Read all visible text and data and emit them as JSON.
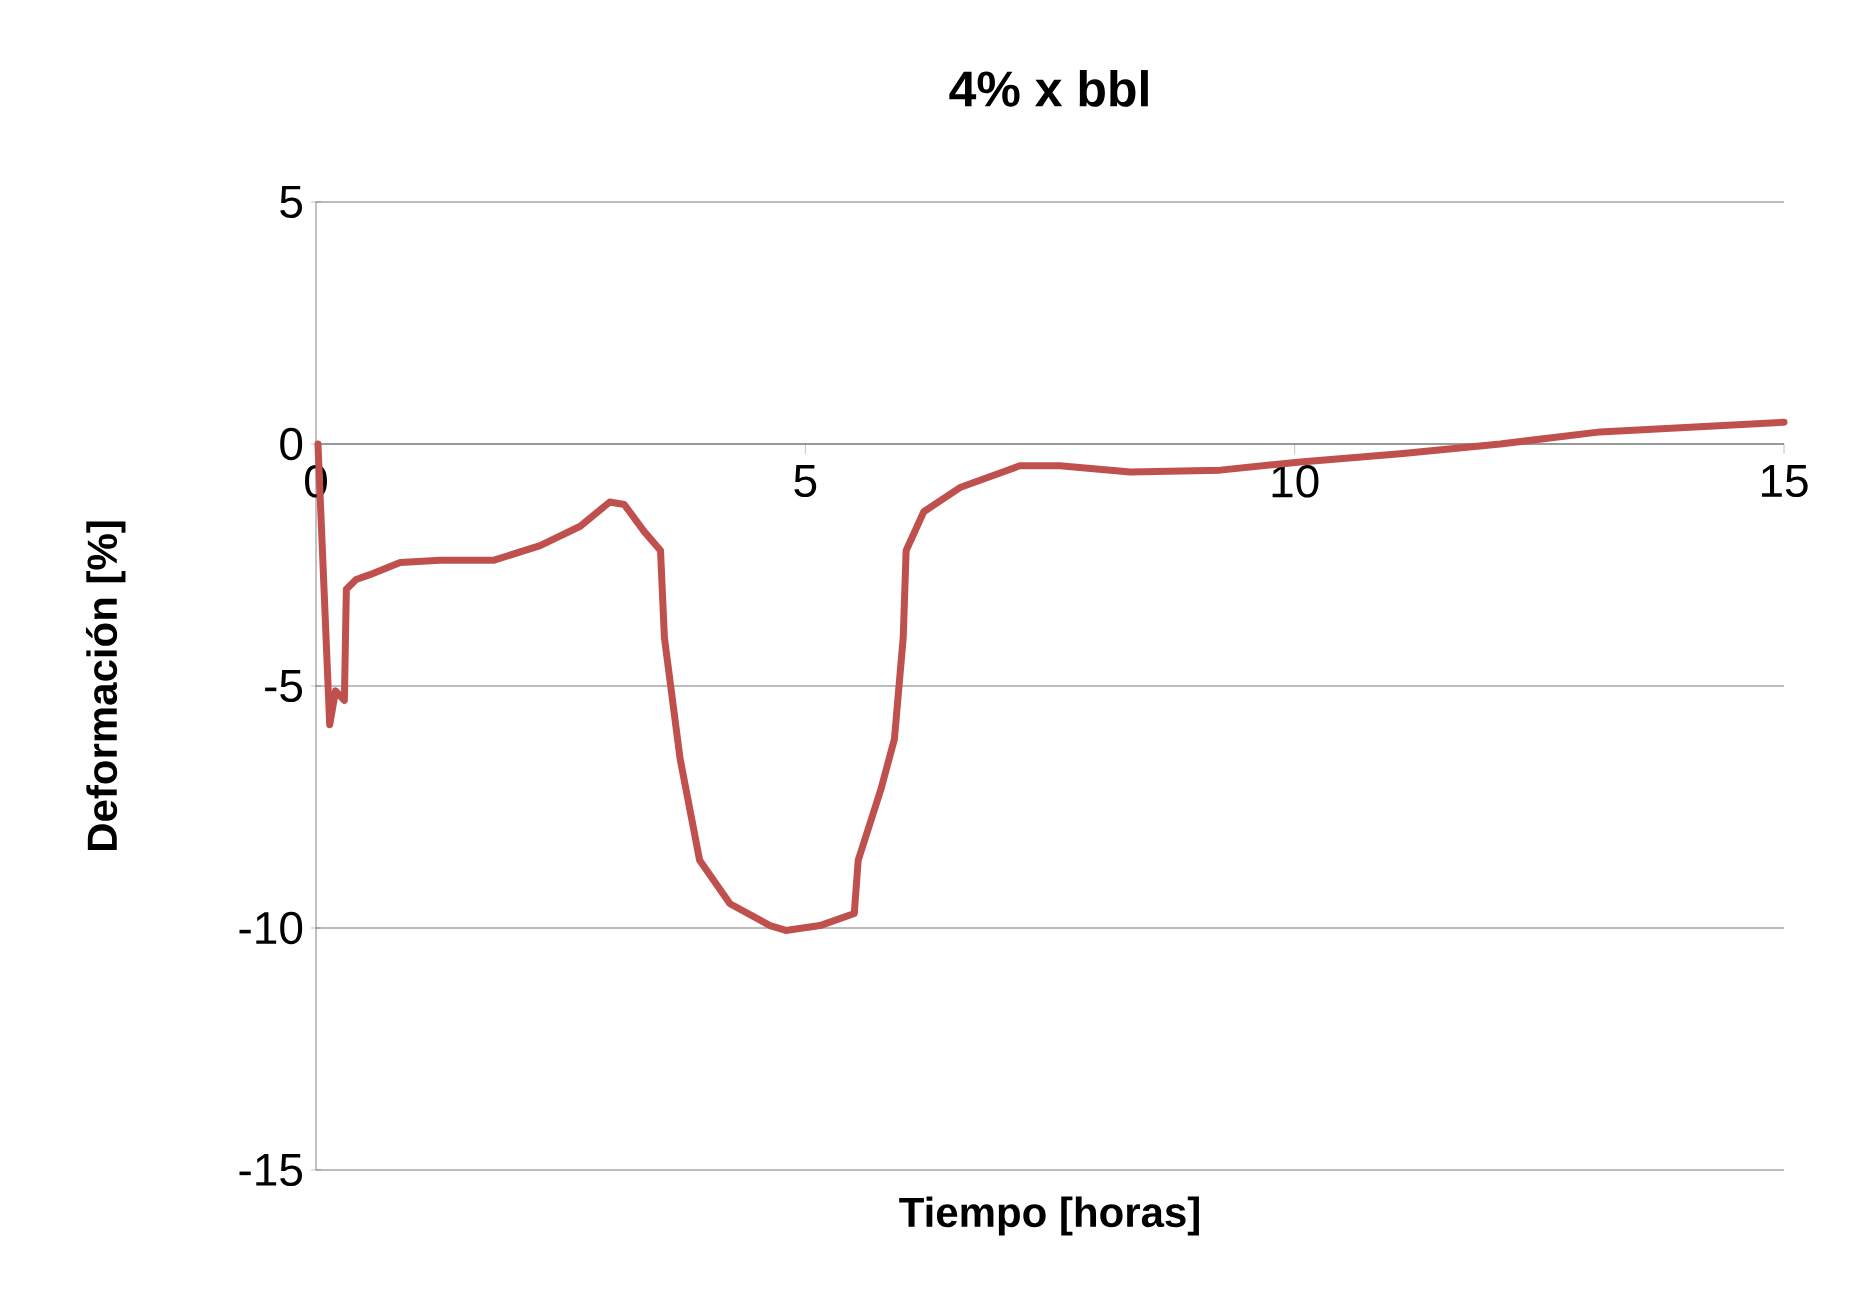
{
  "chart_data": {
    "type": "line",
    "title": "4% x bbl",
    "xlabel": "Tiempo [horas]",
    "ylabel": "Deformación [%]",
    "x": [
      0.02,
      0.14,
      0.2,
      0.29,
      0.31,
      0.41,
      0.55,
      0.86,
      1.27,
      1.82,
      2.29,
      2.7,
      3.0,
      3.15,
      3.35,
      3.52,
      3.56,
      3.72,
      3.92,
      4.23,
      4.64,
      4.8,
      5.15,
      5.5,
      5.54,
      5.77,
      5.91,
      6.0,
      6.03,
      6.21,
      6.58,
      6.99,
      7.19,
      7.6,
      8.32,
      9.24,
      10.06,
      11.08,
      12.1,
      13.12,
      15.0
    ],
    "series": [
      {
        "color": "#c0504d",
        "values": [
          0,
          -5.8,
          -5.1,
          -5.3,
          -3.0,
          -2.8,
          -2.7,
          -2.45,
          -2.4,
          -2.4,
          -2.1,
          -1.7,
          -1.2,
          -1.25,
          -1.8,
          -2.2,
          -4.0,
          -6.5,
          -8.6,
          -9.5,
          -9.95,
          -10.05,
          -9.95,
          -9.7,
          -8.6,
          -7.15,
          -6.1,
          -4.0,
          -2.2,
          -1.4,
          -0.9,
          -0.6,
          -0.45,
          -0.45,
          -0.58,
          -0.54,
          -0.37,
          -0.2,
          0,
          0.25,
          0.45
        ]
      }
    ],
    "xlim": [
      0,
      15
    ],
    "ylim": [
      -15,
      5
    ],
    "xticks": [
      0,
      5,
      10,
      15
    ],
    "yticks": [
      -15,
      -10,
      -5,
      0,
      5
    ],
    "grid": "y"
  }
}
